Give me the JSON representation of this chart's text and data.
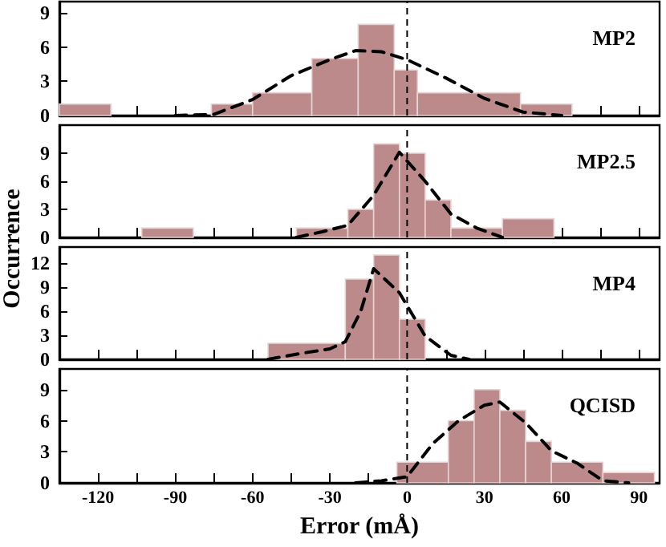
{
  "chart_data": [
    {
      "type": "histogram",
      "title": "MP2",
      "bins": [
        -135,
        -115,
        -76,
        -60,
        -37,
        -19,
        -5,
        4,
        44,
        64
      ],
      "values": [
        1,
        0,
        1,
        2,
        5,
        8,
        4,
        2,
        1
      ],
      "color": "#bc8a8a",
      "series": [
        {
          "type": "line",
          "x": [
            -90,
            -75,
            -60,
            -45,
            -30,
            -20,
            -10,
            0,
            15,
            30,
            45,
            60
          ],
          "values": [
            0,
            0.1,
            1.4,
            3.5,
            4.9,
            5.7,
            5.6,
            4.9,
            3.3,
            1.5,
            0.3,
            0
          ],
          "color": "#000000",
          "line_style": "dashed",
          "marker": "none"
        }
      ],
      "xlim": [
        -135,
        98
      ],
      "xticks": [
        {
          "value": -120,
          "label": null
        },
        {
          "value": -105,
          "label": null
        },
        {
          "value": -90,
          "label": null
        },
        {
          "value": -75,
          "label": null
        },
        {
          "value": -60,
          "label": null
        },
        {
          "value": -45,
          "label": null
        },
        {
          "value": -30,
          "label": null
        },
        {
          "value": -15,
          "label": null
        },
        {
          "value": 0,
          "label": null
        },
        {
          "value": 15,
          "label": null
        },
        {
          "value": 30,
          "label": null
        },
        {
          "value": 45,
          "label": null
        },
        {
          "value": 60,
          "label": null
        },
        {
          "value": 75,
          "label": null
        },
        {
          "value": 90,
          "label": null
        }
      ],
      "ylim": [
        0,
        10
      ],
      "yticks": [
        0,
        3,
        6,
        9
      ],
      "tick_labels": "y",
      "ref_lines": [
        {
          "axis": "x",
          "value": 0,
          "color": "#000000",
          "line_style": "dashed"
        }
      ]
    },
    {
      "type": "histogram",
      "title": "MP2.5",
      "ylabel": "Occurrence",
      "bins": [
        -103,
        -83,
        -43,
        -23,
        -13,
        -3,
        7,
        17,
        37,
        57
      ],
      "values": [
        1,
        0,
        1,
        3,
        10,
        9,
        4,
        1,
        2
      ],
      "color": "#bc8a8a",
      "series": [
        {
          "type": "line",
          "x": [
            -43,
            -33,
            -23,
            -13,
            -3,
            7,
            17,
            27,
            37
          ],
          "values": [
            0,
            0.6,
            1.3,
            4.5,
            9.1,
            6,
            2.5,
            1,
            0
          ],
          "color": "#000000",
          "line_style": "dashed",
          "marker": "none"
        }
      ],
      "xlim": [
        -135,
        98
      ],
      "xticks": [
        {
          "value": -120,
          "label": null
        },
        {
          "value": -105,
          "label": null
        },
        {
          "value": -90,
          "label": null
        },
        {
          "value": -75,
          "label": null
        },
        {
          "value": -60,
          "label": null
        },
        {
          "value": -45,
          "label": null
        },
        {
          "value": -30,
          "label": null
        },
        {
          "value": -15,
          "label": null
        },
        {
          "value": 0,
          "label": null
        },
        {
          "value": 15,
          "label": null
        },
        {
          "value": 30,
          "label": null
        },
        {
          "value": 45,
          "label": null
        },
        {
          "value": 60,
          "label": null
        },
        {
          "value": 75,
          "label": null
        },
        {
          "value": 90,
          "label": null
        }
      ],
      "ylim": [
        0,
        12
      ],
      "yticks": [
        0,
        3,
        6,
        9
      ],
      "tick_labels": "y",
      "ref_lines": [
        {
          "axis": "x",
          "value": 0,
          "color": "#000000",
          "line_style": "dashed"
        }
      ]
    },
    {
      "type": "histogram",
      "title": "MP4",
      "bins": [
        -54,
        -24,
        -13,
        -3,
        7
      ],
      "values": [
        2,
        10,
        13,
        5
      ],
      "color": "#bc8a8a",
      "series": [
        {
          "type": "line",
          "x": [
            -54,
            -40,
            -30,
            -24,
            -18,
            -13,
            -3,
            7,
            17,
            24
          ],
          "values": [
            0,
            0.8,
            1.3,
            2.2,
            6,
            11.3,
            8.3,
            2.9,
            0.5,
            0
          ],
          "color": "#000000",
          "line_style": "dashed",
          "marker": "none"
        }
      ],
      "xlim": [
        -135,
        98
      ],
      "xticks": [
        {
          "value": -120,
          "label": null
        },
        {
          "value": -105,
          "label": null
        },
        {
          "value": -90,
          "label": null
        },
        {
          "value": -75,
          "label": null
        },
        {
          "value": -60,
          "label": null
        },
        {
          "value": -45,
          "label": null
        },
        {
          "value": -30,
          "label": null
        },
        {
          "value": -15,
          "label": null
        },
        {
          "value": 0,
          "label": null
        },
        {
          "value": 15,
          "label": null
        },
        {
          "value": 30,
          "label": null
        },
        {
          "value": 45,
          "label": null
        },
        {
          "value": 60,
          "label": null
        },
        {
          "value": 75,
          "label": null
        },
        {
          "value": 90,
          "label": null
        }
      ],
      "ylim": [
        0,
        14
      ],
      "yticks": [
        0,
        3,
        6,
        9,
        12
      ],
      "tick_labels": "y",
      "ref_lines": [
        {
          "axis": "x",
          "value": 0,
          "color": "#000000",
          "line_style": "dashed"
        }
      ]
    },
    {
      "type": "histogram",
      "title": "QCISD",
      "xlabel": "Error (mÅ)",
      "bins": [
        -4,
        16,
        26,
        36,
        46,
        56,
        76,
        96
      ],
      "values": [
        2,
        6,
        9,
        7,
        4,
        2,
        1
      ],
      "color": "#bc8a8a",
      "series": [
        {
          "type": "line",
          "x": [
            -20,
            -10,
            0,
            10,
            20,
            30,
            36,
            46,
            56,
            66,
            76,
            86
          ],
          "values": [
            0,
            0.2,
            0.6,
            3.8,
            6,
            7.5,
            7.8,
            5.8,
            3.1,
            1.9,
            0.2,
            0
          ],
          "color": "#000000",
          "line_style": "dashed",
          "marker": "none"
        }
      ],
      "xlim": [
        -135,
        98
      ],
      "xticks": [
        -120,
        {
          "value": -105,
          "label": null
        },
        -90,
        {
          "value": -75,
          "label": null
        },
        -60,
        {
          "value": -45,
          "label": null
        },
        -30,
        {
          "value": -15,
          "label": null
        },
        0,
        {
          "value": 15,
          "label": null
        },
        30,
        {
          "value": 45,
          "label": null
        },
        60,
        {
          "value": 75,
          "label": null
        },
        90
      ],
      "ylim": [
        0,
        11
      ],
      "yticks": [
        0,
        3,
        6,
        9
      ],
      "ref_lines": [
        {
          "axis": "x",
          "value": 0,
          "color": "#000000",
          "line_style": "dashed"
        }
      ]
    }
  ]
}
